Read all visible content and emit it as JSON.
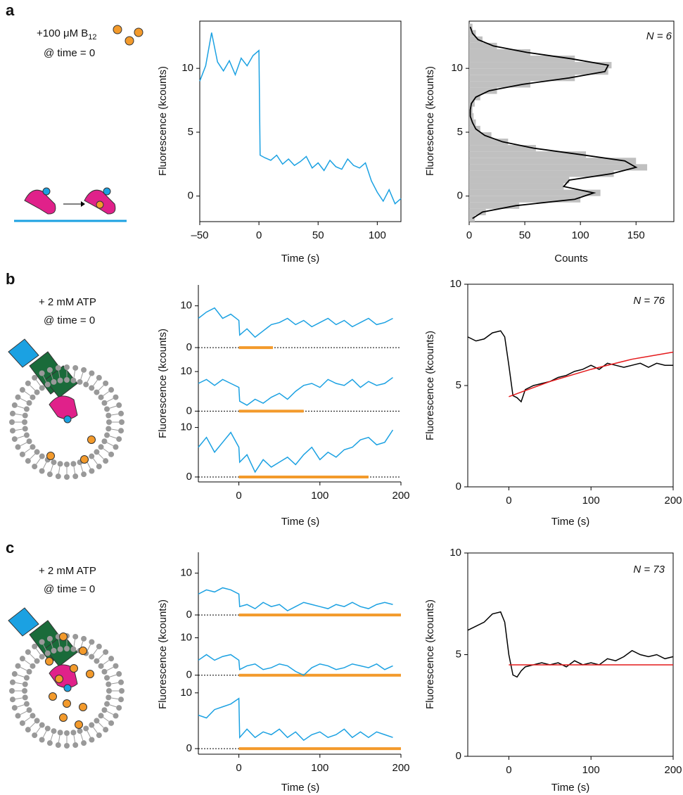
{
  "panels": [
    {
      "label": "a",
      "note": [
        "+100 μM B",
        "12",
        "@ time = 0"
      ]
    },
    {
      "label": "b",
      "note": [
        "+ 2 mM ATP",
        "@ time = 0"
      ]
    },
    {
      "label": "c",
      "note": [
        "+ 2 mM ATP",
        "@ time = 0"
      ]
    }
  ],
  "chart_data": [
    {
      "type": "line",
      "xlabel": "Time (s)",
      "ylabel": "Fluorescence (kcounts)",
      "x": [
        -50,
        -45,
        -40,
        -35,
        -30,
        -25,
        -20,
        -15,
        -10,
        -5,
        0,
        1,
        5,
        10,
        15,
        20,
        25,
        30,
        35,
        40,
        45,
        50,
        55,
        60,
        65,
        70,
        75,
        80,
        85,
        90,
        95,
        100,
        105,
        110,
        115,
        120
      ],
      "series": [
        {
          "color": "#1ba1e2",
          "values": [
            9.0,
            10.2,
            12.8,
            10.5,
            9.8,
            10.6,
            9.5,
            10.8,
            10.2,
            11.0,
            11.4,
            3.2,
            3.0,
            2.8,
            3.2,
            2.5,
            2.9,
            2.4,
            2.7,
            3.1,
            2.2,
            2.6,
            2.0,
            2.8,
            2.3,
            2.1,
            2.9,
            2.4,
            2.2,
            2.6,
            1.2,
            0.3,
            -0.4,
            0.5,
            -0.6,
            -0.2
          ]
        }
      ],
      "xlim": [
        -50,
        120
      ],
      "xticks": [
        {
          "value": -50,
          "label": "–50"
        },
        0,
        50,
        100
      ],
      "ylim": [
        -2,
        13.7
      ],
      "yticks": [
        0,
        5,
        10
      ]
    },
    {
      "type": "histogram",
      "orientation": "horizontal",
      "xlabel": "Counts",
      "ylabel": "Fluorescence (kcounts)",
      "annotation": "N = 6",
      "bins": [
        -2,
        -1.5,
        -1,
        -0.5,
        0,
        0.5,
        1,
        1.5,
        2,
        2.5,
        3,
        3.5,
        4,
        4.5,
        5,
        5.5,
        6,
        6.5,
        7,
        7.5,
        8,
        8.5,
        9,
        9.5,
        10,
        10.5,
        11,
        11.5,
        12,
        12.5,
        13,
        13.5
      ],
      "values": [
        5,
        15,
        45,
        100,
        118,
        85,
        90,
        130,
        160,
        150,
        105,
        60,
        35,
        20,
        10,
        6,
        4,
        3,
        5,
        10,
        25,
        55,
        95,
        125,
        128,
        95,
        55,
        25,
        12,
        6,
        3
      ],
      "color": "#c0c0c0",
      "fit": {
        "color": "#000000",
        "fluorescence": [
          -1.75,
          -1.25,
          -0.75,
          -0.25,
          0.25,
          0.75,
          1.25,
          1.75,
          2.25,
          2.75,
          3.25,
          3.75,
          4.25,
          4.75,
          5.25,
          5.75,
          6.25,
          6.75,
          7.25,
          7.75,
          8.25,
          8.75,
          9.25,
          9.75,
          10.25,
          10.75,
          11.25,
          11.75,
          12.25,
          12.75,
          13.25
        ],
        "counts": [
          3,
          12,
          42,
          95,
          112,
          85,
          90,
          128,
          150,
          140,
          100,
          58,
          30,
          14,
          6,
          3,
          1,
          1,
          2,
          6,
          18,
          48,
          90,
          122,
          125,
          92,
          52,
          22,
          8,
          3,
          1
        ]
      },
      "xlim": [
        0,
        184
      ],
      "xticks": [
        0,
        50,
        100,
        150
      ],
      "ylim": [
        -2,
        13.7
      ],
      "yticks": [
        0,
        5,
        10
      ]
    },
    {
      "type": "line",
      "ylabel": "Fluorescence (kcounts)",
      "x": [
        -50,
        -40,
        -30,
        -20,
        -10,
        0,
        1,
        10,
        20,
        30,
        40,
        50,
        60,
        70,
        80,
        90,
        100,
        110,
        120,
        130,
        140,
        150,
        160,
        170,
        180,
        190
      ],
      "series": [
        {
          "color": "#1ba1e2",
          "values": [
            7,
            8.5,
            9.5,
            7,
            8,
            6.5,
            3,
            4.5,
            2.5,
            4,
            5.5,
            6,
            7,
            5.5,
            6.5,
            5,
            6,
            7,
            5.5,
            6.5,
            5,
            6,
            7,
            5.5,
            6,
            7
          ]
        }
      ],
      "dwell": [
        0,
        42
      ],
      "dwell_color": "#f39a2b",
      "xlim": [
        -50,
        200
      ],
      "ylim": [
        -1,
        15
      ],
      "yticks": [
        0,
        10
      ]
    },
    {
      "type": "line",
      "x": [
        -50,
        -40,
        -30,
        -20,
        -10,
        0,
        1,
        10,
        20,
        30,
        40,
        50,
        60,
        70,
        80,
        90,
        100,
        110,
        120,
        130,
        140,
        150,
        160,
        170,
        180,
        190
      ],
      "series": [
        {
          "color": "#1ba1e2",
          "values": [
            7,
            8,
            6.5,
            8,
            7,
            6,
            2.5,
            1.5,
            3,
            2,
            3.5,
            4.5,
            3,
            5,
            6.5,
            7,
            6,
            8,
            7,
            6.5,
            8,
            6,
            7.5,
            6.5,
            7,
            8.5
          ]
        }
      ],
      "dwell": [
        0,
        80
      ],
      "dwell_color": "#f39a2b",
      "xlim": [
        -50,
        200
      ],
      "ylim": [
        -1,
        15
      ],
      "yticks": [
        0,
        10
      ]
    },
    {
      "type": "line",
      "xlabel": "Time (s)",
      "x": [
        -50,
        -40,
        -30,
        -20,
        -10,
        0,
        1,
        10,
        20,
        30,
        40,
        50,
        60,
        70,
        80,
        90,
        100,
        110,
        120,
        130,
        140,
        150,
        160,
        170,
        180,
        190
      ],
      "series": [
        {
          "color": "#1ba1e2",
          "values": [
            6,
            8,
            5,
            7,
            9,
            6,
            3,
            4.5,
            1,
            3.5,
            2,
            3,
            4,
            2.5,
            4.5,
            6,
            3.5,
            5,
            4,
            5.5,
            6,
            7.5,
            8,
            6.5,
            7,
            9.5
          ]
        }
      ],
      "dwell": [
        0,
        160
      ],
      "dwell_color": "#f39a2b",
      "xlim": [
        -50,
        200
      ],
      "xticks": [
        0,
        100,
        200
      ],
      "ylim": [
        -1,
        12.5
      ],
      "yticks": [
        0,
        10
      ]
    },
    {
      "type": "line",
      "xlabel": "Time (s)",
      "ylabel": "Fluorescence (kcounts)",
      "annotation": "N = 76",
      "x": [
        -50,
        -40,
        -30,
        -20,
        -10,
        -5,
        0,
        5,
        10,
        15,
        20,
        30,
        40,
        50,
        60,
        70,
        80,
        90,
        100,
        110,
        120,
        130,
        140,
        150,
        160,
        170,
        180,
        190,
        200
      ],
      "series": [
        {
          "color": "#000000",
          "values": [
            7.4,
            7.2,
            7.3,
            7.6,
            7.7,
            7.4,
            6.0,
            4.5,
            4.4,
            4.2,
            4.8,
            5.0,
            5.1,
            5.2,
            5.4,
            5.5,
            5.7,
            5.8,
            6.0,
            5.8,
            6.1,
            6.0,
            5.9,
            6.0,
            6.1,
            5.9,
            6.1,
            6.0,
            6.0
          ]
        }
      ],
      "fit": {
        "color": "#e41a1c",
        "x": [
          0,
          50,
          100,
          150,
          200
        ],
        "values": [
          4.45,
          5.2,
          5.8,
          6.3,
          6.65
        ]
      },
      "xlim": [
        -50,
        200
      ],
      "xticks": [
        0,
        100,
        200
      ],
      "ylim": [
        0,
        10
      ],
      "yticks": [
        0,
        5,
        10
      ]
    },
    {
      "type": "line",
      "ylabel": "Fluorescence (kcounts)",
      "x": [
        -50,
        -40,
        -30,
        -20,
        -10,
        0,
        1,
        10,
        20,
        30,
        40,
        50,
        60,
        70,
        80,
        90,
        100,
        110,
        120,
        130,
        140,
        150,
        160,
        170,
        180,
        190
      ],
      "series": [
        {
          "color": "#1ba1e2",
          "values": [
            5,
            6,
            5.5,
            6.5,
            6,
            5,
            2,
            2.5,
            1.5,
            3,
            2,
            2.5,
            1,
            2,
            3,
            2.5,
            2,
            1.5,
            2.5,
            2,
            3,
            2,
            1.5,
            2.5,
            3,
            2.5
          ]
        }
      ],
      "dwell": [
        0,
        200
      ],
      "dwell_color": "#f39a2b",
      "xlim": [
        -50,
        200
      ],
      "ylim": [
        -1,
        15
      ],
      "yticks": [
        0,
        10
      ]
    },
    {
      "type": "line",
      "x": [
        -50,
        -40,
        -30,
        -20,
        -10,
        0,
        1,
        10,
        20,
        30,
        40,
        50,
        60,
        70,
        80,
        90,
        100,
        110,
        120,
        130,
        140,
        150,
        160,
        170,
        180,
        190
      ],
      "series": [
        {
          "color": "#1ba1e2",
          "values": [
            4,
            5.5,
            4,
            5,
            5.5,
            4,
            1.5,
            2.5,
            3,
            1.5,
            2,
            3,
            2.5,
            1,
            0,
            2,
            3,
            2.5,
            1.5,
            2,
            3,
            2.5,
            2,
            3,
            1.5,
            2.5
          ]
        }
      ],
      "dwell": [
        0,
        200
      ],
      "dwell_color": "#f39a2b",
      "xlim": [
        -50,
        200
      ],
      "ylim": [
        -1,
        15
      ],
      "yticks": [
        0,
        10
      ]
    },
    {
      "type": "line",
      "xlabel": "Time (s)",
      "x": [
        -50,
        -40,
        -30,
        -20,
        -10,
        0,
        1,
        10,
        20,
        30,
        40,
        50,
        60,
        70,
        80,
        90,
        100,
        110,
        120,
        130,
        140,
        150,
        160,
        170,
        180,
        190
      ],
      "series": [
        {
          "color": "#1ba1e2",
          "values": [
            6,
            5.5,
            7,
            7.5,
            8,
            9,
            2,
            3.5,
            2,
            3,
            2.5,
            3.5,
            2,
            3,
            1.5,
            2.5,
            3,
            2,
            2.5,
            3.5,
            2,
            3,
            2,
            3,
            2.5,
            2
          ]
        }
      ],
      "dwell": [
        0,
        200
      ],
      "dwell_color": "#f39a2b",
      "xlim": [
        -50,
        200
      ],
      "xticks": [
        0,
        100,
        200
      ],
      "ylim": [
        -1,
        12.5
      ],
      "yticks": [
        0,
        10
      ]
    },
    {
      "type": "line",
      "xlabel": "Time (s)",
      "ylabel": "Fluorescence (kcounts)",
      "annotation": "N = 73",
      "x": [
        -50,
        -40,
        -30,
        -20,
        -10,
        -5,
        0,
        5,
        10,
        15,
        20,
        30,
        40,
        50,
        60,
        70,
        80,
        90,
        100,
        110,
        120,
        130,
        140,
        150,
        160,
        170,
        180,
        190,
        200
      ],
      "series": [
        {
          "color": "#000000",
          "values": [
            6.2,
            6.4,
            6.6,
            7.0,
            7.1,
            6.6,
            5.0,
            4.0,
            3.9,
            4.2,
            4.4,
            4.5,
            4.6,
            4.5,
            4.6,
            4.4,
            4.7,
            4.5,
            4.6,
            4.5,
            4.8,
            4.7,
            4.9,
            5.2,
            5.0,
            4.9,
            5.0,
            4.8,
            4.9
          ]
        }
      ],
      "fit": {
        "color": "#e41a1c",
        "x": [
          0,
          200
        ],
        "values": [
          4.5,
          4.5
        ]
      },
      "xlim": [
        -50,
        200
      ],
      "xticks": [
        0,
        100,
        200
      ],
      "ylim": [
        0,
        10
      ],
      "yticks": [
        0,
        5,
        10
      ]
    }
  ]
}
